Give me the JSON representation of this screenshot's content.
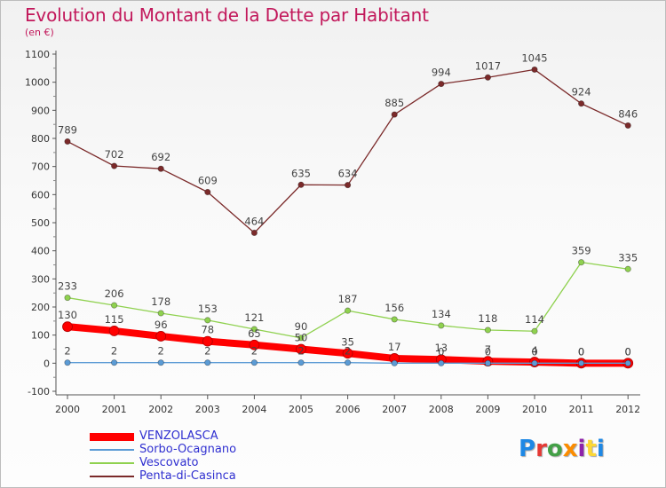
{
  "header": {
    "title": "Evolution du Montant de la Dette par Habitant",
    "subtitle": "(en €)"
  },
  "logo": {
    "letters": [
      "P",
      "r",
      "o",
      "x",
      "i",
      "t",
      "i"
    ],
    "colors": [
      "#1e88e5",
      "#e53935",
      "#43a047",
      "#fb8c00",
      "#8e24aa",
      "#fdd835",
      "#1e88e5"
    ]
  },
  "chart_data": {
    "type": "line",
    "title": "Evolution du Montant de la Dette par Habitant",
    "subtitle": "(en €)",
    "xlabel": "",
    "ylabel": "",
    "categories": [
      "2000",
      "2001",
      "2002",
      "2003",
      "2004",
      "2005",
      "2006",
      "2007",
      "2008",
      "2009",
      "2010",
      "2011",
      "2012"
    ],
    "ylim": [
      -100,
      1100
    ],
    "yticks": [
      "-100",
      "0",
      "100",
      "200",
      "300",
      "400",
      "500",
      "600",
      "700",
      "800",
      "900",
      "1000",
      "1100"
    ],
    "grid": false,
    "legend_position": "bottom-left",
    "series": [
      {
        "name": "VENZOLASCA",
        "color": "#ff0000",
        "values": [
          130,
          115,
          96,
          78,
          65,
          50,
          35,
          17,
          13,
          7,
          4,
          0,
          0
        ],
        "labels": [
          "130",
          "115",
          "96",
          "78",
          "65",
          "50",
          "35",
          "17",
          "13",
          "7",
          "4",
          "0",
          "0"
        ]
      },
      {
        "name": "Sorbo-Ocagnano",
        "color": "#5b9bd5",
        "values": [
          2,
          2,
          2,
          2,
          2,
          2,
          2,
          0,
          0,
          0,
          0,
          0,
          0
        ],
        "labels": [
          "2",
          "2",
          "2",
          "2",
          "2",
          "2",
          "2",
          "",
          "0",
          "0",
          "0",
          "0",
          "0"
        ]
      },
      {
        "name": "Vescovato",
        "color": "#8fd14f",
        "values": [
          233,
          206,
          178,
          153,
          121,
          90,
          187,
          156,
          134,
          118,
          114,
          359,
          335
        ],
        "labels": [
          "233",
          "206",
          "178",
          "153",
          "121",
          "90",
          "187",
          "156",
          "134",
          "118",
          "114",
          "359",
          "335"
        ]
      },
      {
        "name": "Penta-di-Casinca",
        "color": "#7b2a2a",
        "values": [
          789,
          702,
          692,
          609,
          464,
          635,
          634,
          885,
          994,
          1017,
          1045,
          924,
          846
        ],
        "labels": [
          "789",
          "702",
          "692",
          "609",
          "464",
          "635",
          "634",
          "885",
          "994",
          "1017",
          "1045",
          "924",
          "846"
        ]
      }
    ]
  }
}
